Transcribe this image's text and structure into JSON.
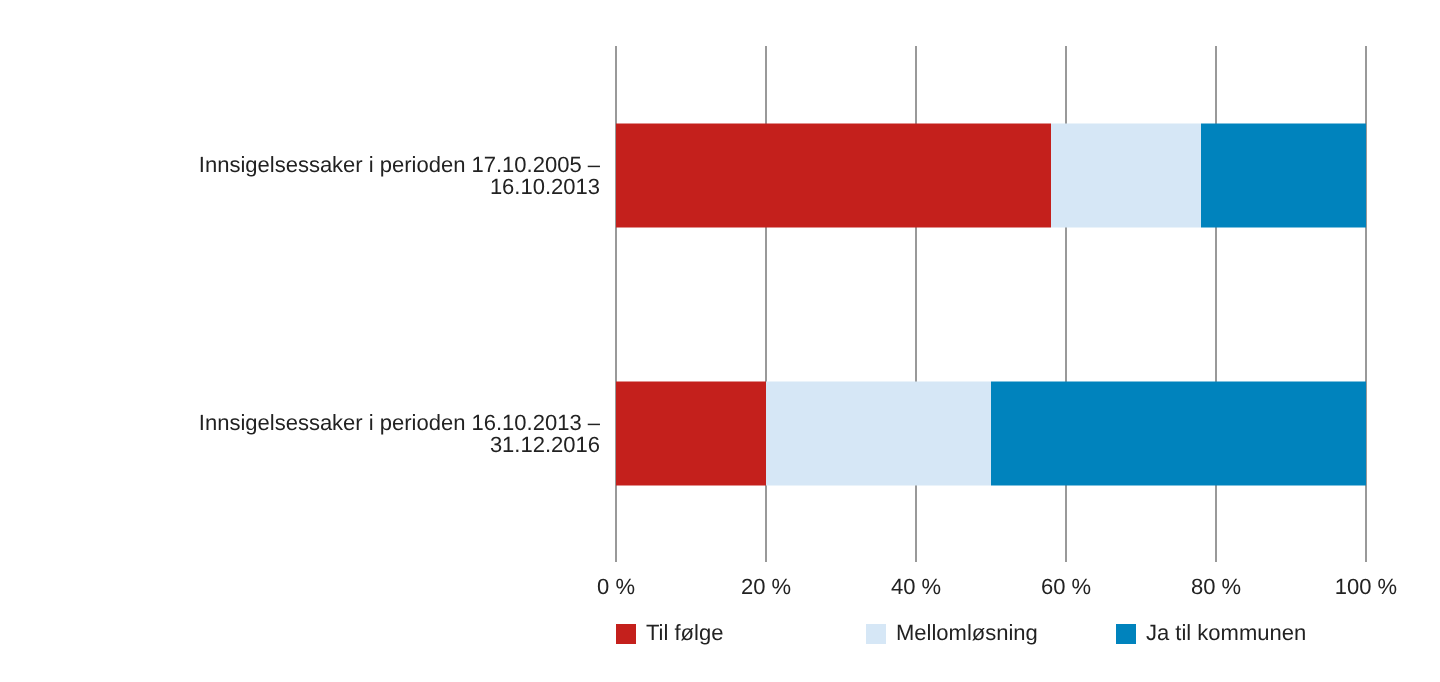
{
  "chart_data": {
    "type": "bar",
    "orientation": "horizontal",
    "stacked": true,
    "categories": [
      "Innsigelsessaker i perioden 17.10.2005 – 16.10.2013",
      "Innsigelsessaker i perioden 16.10.2013 – 31.12.2016"
    ],
    "series": [
      {
        "name": "Til følge",
        "color": "#c4201c",
        "values": [
          58,
          20
        ]
      },
      {
        "name": "Mellomløsning",
        "color": "#d6e7f6",
        "values": [
          20,
          30
        ]
      },
      {
        "name": "Ja til kommunen",
        "color": "#0083bd",
        "values": [
          22,
          50
        ]
      }
    ],
    "xlim": [
      0,
      100
    ],
    "xticks": [
      {
        "value": 0,
        "label": "0 %"
      },
      {
        "value": 20,
        "label": "20 %"
      },
      {
        "value": 40,
        "label": "40 %"
      },
      {
        "value": 60,
        "label": "60 %"
      },
      {
        "value": 80,
        "label": "80 %"
      },
      {
        "value": 100,
        "label": "100 %"
      }
    ],
    "grid": "x",
    "legend": "bottom"
  }
}
